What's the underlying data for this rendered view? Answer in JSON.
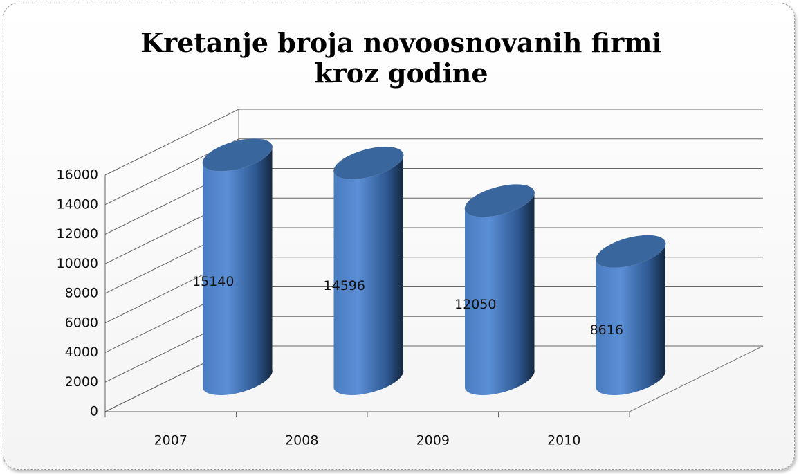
{
  "chart_data": {
    "type": "bar",
    "title": "Kretanje broja novoosnovanih firmi kroz godine",
    "categories": [
      "2007",
      "2008",
      "2009",
      "2010"
    ],
    "values": [
      15140,
      14596,
      12050,
      8616
    ],
    "color": "#4f81bd",
    "ylim": [
      0,
      16000
    ],
    "yticks": [
      0,
      2000,
      4000,
      6000,
      8000,
      10000,
      12000,
      14000,
      16000
    ],
    "grid": true
  }
}
